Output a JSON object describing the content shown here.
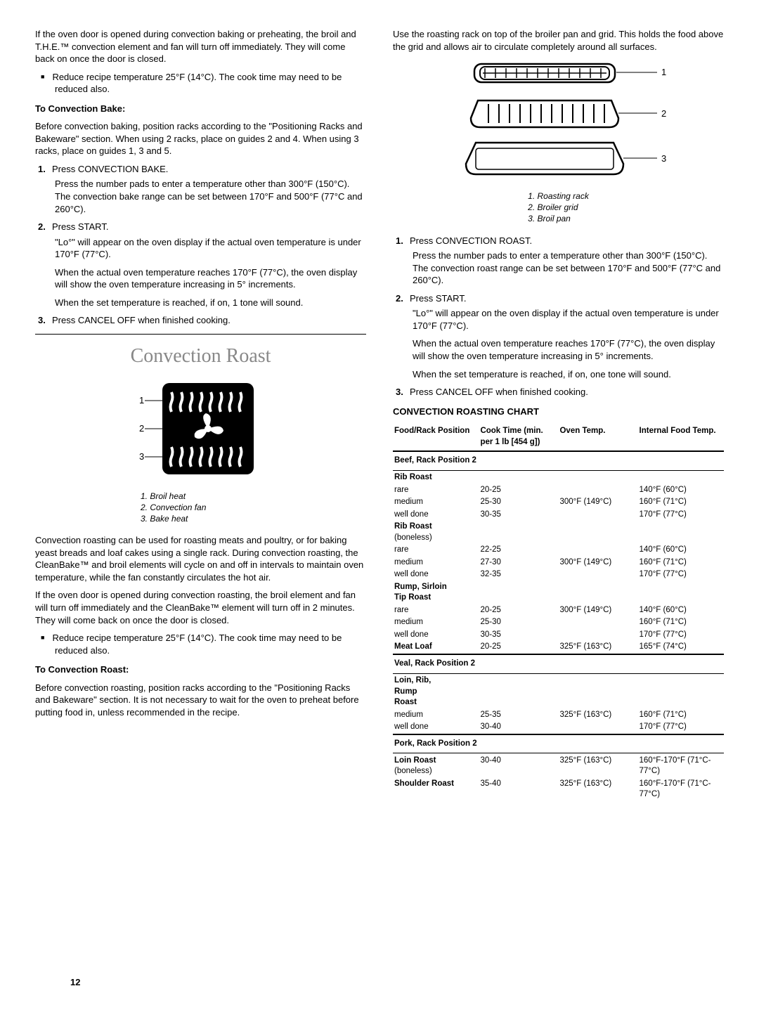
{
  "page_number": "12",
  "left": {
    "intro": "If the oven door is opened during convection baking or preheating, the broil and T.H.E.™ convection element and fan will turn off immediately. They will come back on once the door is closed.",
    "bullet1": "Reduce recipe temperature 25°F (14°C). The cook time may need to be reduced also.",
    "h_bake": "To Convection Bake:",
    "bake_intro": "Before convection baking, position racks according to the \"Positioning Racks and Bakeware\" section. When using 2 racks, place on guides 2 and 4. When using 3 racks, place on guides 1, 3 and 5.",
    "bake_steps": [
      {
        "num": "1.",
        "t": "Press CONVECTION BAKE.",
        "sub": [
          "Press the number pads to enter a temperature other than 300°F (150°C). The convection bake range can be set between 170°F and 500°F (77°C and 260°C)."
        ]
      },
      {
        "num": "2.",
        "t": "Press START.",
        "sub": [
          "\"Lo°\" will appear on the oven display if the actual oven temperature is under 170°F (77°C).",
          "When the actual oven temperature reaches 170°F (77°C), the oven display will show the oven temperature increasing in 5° increments.",
          "When the set temperature is reached, if on, 1 tone will sound."
        ]
      },
      {
        "num": "3.",
        "t": "Press CANCEL OFF when finished cooking.",
        "sub": []
      }
    ],
    "h_roast": "Convection Roast",
    "roast_caption": [
      "1. Broil heat",
      "2. Convection fan",
      "3. Bake heat"
    ],
    "roast_p1": "Convection roasting can be used for roasting meats and poultry, or for baking yeast breads and loaf cakes using a single rack. During convection roasting, the CleanBake™ and broil elements will cycle on and off in intervals to maintain oven temperature, while the fan constantly circulates the hot air.",
    "roast_p2": "If the oven door is opened during convection roasting, the broil element and fan will turn off immediately and the CleanBake™ element will turn off in 2 minutes. They will come back on once the door is closed.",
    "roast_bullet": "Reduce recipe temperature 25°F (14°C). The cook time may need to be reduced also.",
    "h_roast2": "To Convection Roast:",
    "roast_intro": "Before convection roasting, position racks according to the \"Positioning Racks and Bakeware\" section. It is not necessary to wait for the oven to preheat before putting food in, unless recommended in the recipe."
  },
  "right": {
    "top_p": "Use the roasting rack on top of the broiler pan and grid. This holds the food above the grid and allows air to circulate completely around all surfaces.",
    "rack_caption": [
      "1. Roasting rack",
      "2. Broiler grid",
      "3. Broil pan"
    ],
    "steps": [
      {
        "num": "1.",
        "t": "Press CONVECTION ROAST.",
        "sub": [
          "Press the number pads to enter a temperature other than 300°F (150°C). The convection roast range can be set between 170°F and 500°F (77°C and 260°C)."
        ]
      },
      {
        "num": "2.",
        "t": "Press START.",
        "sub": [
          "\"Lo°\" will appear on the oven display if the actual oven temperature is under 170°F (77°C).",
          "When the actual oven temperature reaches 170°F (77°C), the oven display will show the oven temperature increasing in 5° increments.",
          "When the set temperature is reached, if on, one tone will sound."
        ]
      },
      {
        "num": "3.",
        "t": "Press CANCEL OFF when finished cooking.",
        "sub": []
      }
    ],
    "chart_title": "CONVECTION ROASTING CHART",
    "chart_headers": [
      "Food/Rack Position",
      "Cook Time (min. per 1 lb [454 g])",
      "Oven Temp.",
      "Internal Food Temp."
    ],
    "sections": [
      {
        "title": "Beef, Rack Position 2",
        "groups": [
          {
            "name": "Rib Roast",
            "rows": [
              [
                "rare",
                "20-25",
                "",
                "140°F (60°C)"
              ],
              [
                "medium",
                "25-30",
                "300°F (149°C)",
                "160°F (71°C)"
              ],
              [
                "well done",
                "30-35",
                "",
                "170°F (77°C)"
              ]
            ]
          },
          {
            "name": "Rib Roast (boneless)",
            "name2": "(boneless)",
            "nameMain": "Rib Roast",
            "rows": [
              [
                "rare",
                "22-25",
                "",
                "140°F (60°C)"
              ],
              [
                "medium",
                "27-30",
                "300°F (149°C)",
                "160°F (71°C)"
              ],
              [
                "well done",
                "32-35",
                "",
                "170°F (77°C)"
              ]
            ]
          },
          {
            "name": "Rump, Sirloin Tip Roast",
            "rows": [
              [
                "rare",
                "20-25",
                "300°F (149°C)",
                "140°F (60°C)"
              ],
              [
                "medium",
                "25-30",
                "",
                "160°F (71°C)"
              ],
              [
                "well done",
                "30-35",
                "",
                "170°F (77°C)"
              ]
            ]
          },
          {
            "name": "Meat Loaf",
            "rows": [
              [
                "",
                "20-25",
                "325°F (163°C)",
                "165°F (74°C)"
              ]
            ],
            "inline": true
          }
        ]
      },
      {
        "title": "Veal, Rack Position 2",
        "groups": [
          {
            "name": "Loin, Rib, Rump Roast",
            "rows": [
              [
                "medium",
                "25-35",
                "325°F (163°C)",
                "160°F (71°C)"
              ],
              [
                "well done",
                "30-40",
                "",
                "170°F (77°C)"
              ]
            ]
          }
        ]
      },
      {
        "title": "Pork, Rack Position 2",
        "groups": [
          {
            "name": "Loin Roast (boneless)",
            "name2": "(boneless)",
            "nameMain": "Loin Roast",
            "rows": [
              [
                "",
                "30-40",
                "325°F (163°C)",
                "160°F-170°F (71°C-77°C)"
              ]
            ],
            "inline": true
          },
          {
            "name": "Shoulder Roast",
            "rows": [
              [
                "",
                "35-40",
                "325°F (163°C)",
                "160°F-170°F (71°C-77°C)"
              ]
            ],
            "inline": true
          }
        ]
      }
    ]
  }
}
